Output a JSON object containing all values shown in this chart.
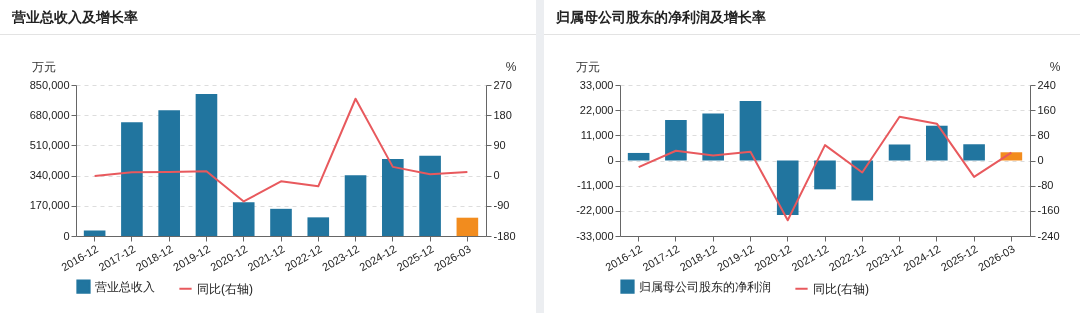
{
  "chart_data": [
    {
      "type": "bar",
      "title": "营业总收入及增长率",
      "categories": [
        "2016-12",
        "2017-12",
        "2018-12",
        "2019-12",
        "2020-12",
        "2021-12",
        "2022-12",
        "2023-12",
        "2024-12",
        "2025-12",
        "2026-03"
      ],
      "ylabel": "万元",
      "y2label": "%",
      "ylim": [
        0,
        850000
      ],
      "yticks": [
        0,
        {
          "value": 170000,
          "label": "170,000"
        },
        {
          "value": 340000,
          "label": "340,000"
        },
        {
          "value": 510000,
          "label": "510,000"
        },
        {
          "value": 680000,
          "label": "680,000"
        },
        {
          "value": 850000,
          "label": "850,000"
        }
      ],
      "y2lim": [
        -180,
        270
      ],
      "y2ticks": [
        -180,
        -90,
        0,
        90,
        180,
        270
      ],
      "grid": "y",
      "legend": "bottom",
      "marker": "none",
      "series": [
        {
          "name": "营业总收入",
          "color": "#21759f",
          "colors": [
            "#21759f",
            "#21759f",
            "#21759f",
            "#21759f",
            "#21759f",
            "#21759f",
            "#21759f",
            "#21759f",
            "#21759f",
            "#21759f",
            "#f28c1e"
          ],
          "values": [
            31000,
            640000,
            708000,
            800000,
            190000,
            153000,
            105000,
            342000,
            433000,
            452000,
            103000
          ]
        },
        {
          "name": "同比(右轴)",
          "type": "line",
          "color": "#e8595d",
          "axis": "y2",
          "values": [
            -1,
            10,
            11,
            13,
            -77,
            -17,
            -32,
            229,
            26,
            4,
            11
          ]
        }
      ]
    },
    {
      "type": "bar",
      "title": "归属母公司股东的净利润及增长率",
      "categories": [
        "2016-12",
        "2017-12",
        "2018-12",
        "2019-12",
        "2020-12",
        "2021-12",
        "2022-12",
        "2023-12",
        "2024-12",
        "2025-12",
        "2026-03"
      ],
      "ylabel": "万元",
      "y2label": "%",
      "ylim": [
        -33000,
        33000
      ],
      "yticks": [
        {
          "value": -33000,
          "label": "-33,000"
        },
        {
          "value": -22000,
          "label": "-22,000"
        },
        {
          "value": -11000,
          "label": "-11,000"
        },
        0,
        {
          "value": 11000,
          "label": "11,000"
        },
        {
          "value": 22000,
          "label": "22,000"
        },
        {
          "value": 33000,
          "label": "33,000"
        }
      ],
      "y2lim": [
        -240,
        240
      ],
      "y2ticks": [
        -240,
        -160,
        -80,
        0,
        80,
        160,
        240
      ],
      "grid": "y",
      "legend": "bottom",
      "marker": "none",
      "series": [
        {
          "name": "归属母公司股东的净利润",
          "color": "#21759f",
          "colors": [
            "#21759f",
            "#21759f",
            "#21759f",
            "#21759f",
            "#21759f",
            "#21759f",
            "#21759f",
            "#21759f",
            "#21759f",
            "#21759f",
            "#f28c1e"
          ],
          "values": [
            3300,
            17700,
            20500,
            26000,
            -23800,
            -12600,
            -17500,
            7000,
            15200,
            7100,
            3600
          ]
        },
        {
          "name": "同比(右轴)",
          "type": "line",
          "color": "#e8595d",
          "axis": "y2",
          "values": [
            -21,
            31,
            16,
            28,
            -190,
            49,
            -38,
            139,
            117,
            -52,
            25
          ]
        }
      ]
    }
  ]
}
